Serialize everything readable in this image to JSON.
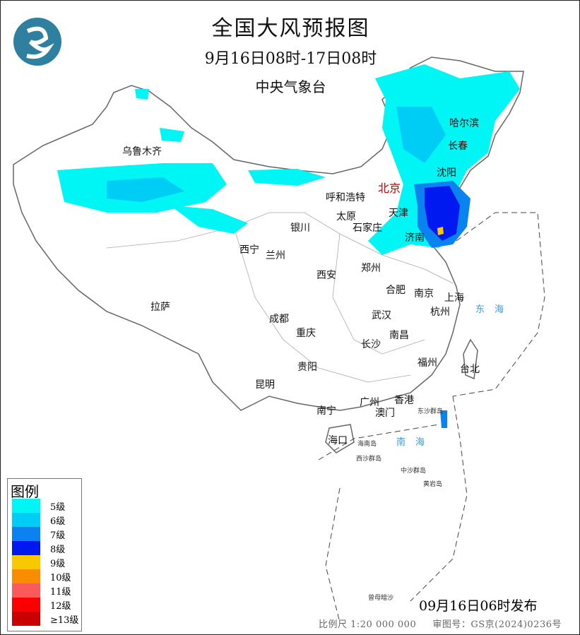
{
  "title": "全国大风预报图",
  "period": "9月16日08时-17日08时",
  "issuer": "中央气象台",
  "published": "09月16日06时发布",
  "scale": "比例尺 1:20 000 000",
  "approval": "审图号：GS京(2024)0236号",
  "legend": {
    "title": "图例",
    "items": [
      {
        "label": "5级",
        "color": "#00f5f5"
      },
      {
        "label": "6级",
        "color": "#00cdf5"
      },
      {
        "label": "7级",
        "color": "#0a82f0"
      },
      {
        "label": "8级",
        "color": "#0019f0"
      },
      {
        "label": "9级",
        "color": "#fac800"
      },
      {
        "label": "10级",
        "color": "#fa8c00"
      },
      {
        "label": "11级",
        "color": "#fa5a5a"
      },
      {
        "label": "12级",
        "color": "#fa0000"
      },
      {
        "label": "≥13级",
        "color": "#c80000"
      }
    ]
  },
  "capital": "北京",
  "cities": [
    "乌鲁木齐",
    "哈尔滨",
    "长春",
    "沈阳",
    "呼和浩特",
    "天津",
    "太原",
    "石家庄",
    "银川",
    "济南",
    "西宁",
    "兰州",
    "郑州",
    "西安",
    "合肥",
    "南京",
    "上海",
    "拉萨",
    "成都",
    "武汉",
    "杭州",
    "重庆",
    "南昌",
    "长沙",
    "福州",
    "台北",
    "贵阳",
    "昆明",
    "南宁",
    "广州",
    "香港",
    "澳门",
    "海口"
  ],
  "seas": [
    "东海",
    "南海"
  ],
  "islands": [
    "东沙群岛",
    "西沙群岛",
    "中沙群岛",
    "黄岩岛",
    "海南岛",
    "曾母暗沙"
  ]
}
